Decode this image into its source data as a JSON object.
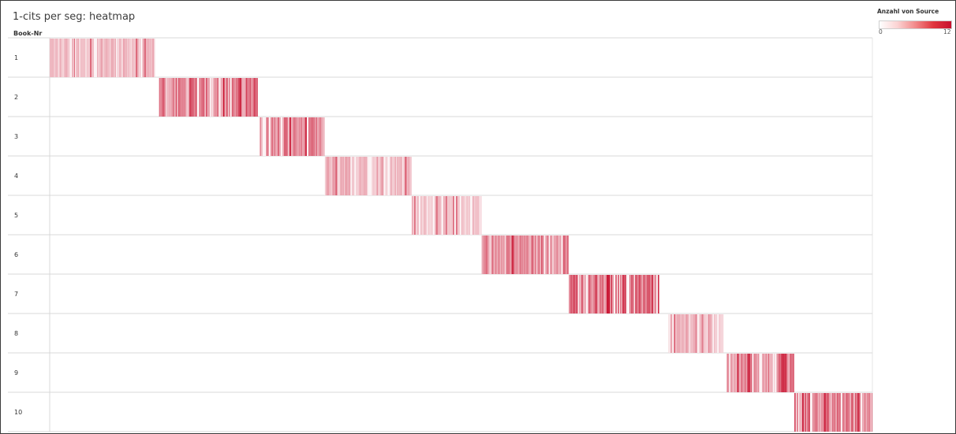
{
  "title": "1-cits per seg: heatmap",
  "row_header": "Book-Nr",
  "legend": {
    "title": "Anzahl von Source",
    "min_label": "0",
    "max_label": "12",
    "color_low": "#ffffff",
    "color_high": "#c8102e"
  },
  "chart_data": {
    "type": "heatmap",
    "title": "1-cits per seg: heatmap",
    "ylabel": "Book-Nr",
    "rows": [
      "1",
      "2",
      "3",
      "4",
      "5",
      "6",
      "7",
      "8",
      "9",
      "10"
    ],
    "value_range": [
      0,
      12
    ],
    "x_range": [
      0,
      1000
    ],
    "segments": [
      {
        "book": "1",
        "x_start": 0,
        "x_end": 128,
        "mean_intensity": 0.32
      },
      {
        "book": "2",
        "x_start": 133,
        "x_end": 253,
        "mean_intensity": 0.68
      },
      {
        "book": "3",
        "x_start": 255,
        "x_end": 334,
        "mean_intensity": 0.6
      },
      {
        "book": "4",
        "x_start": 334,
        "x_end": 440,
        "mean_intensity": 0.4
      },
      {
        "book": "5",
        "x_start": 440,
        "x_end": 525,
        "mean_intensity": 0.3
      },
      {
        "book": "6",
        "x_start": 525,
        "x_end": 631,
        "mean_intensity": 0.6
      },
      {
        "book": "7",
        "x_start": 631,
        "x_end": 741,
        "mean_intensity": 0.72
      },
      {
        "book": "8",
        "x_start": 752,
        "x_end": 819,
        "mean_intensity": 0.38
      },
      {
        "book": "9",
        "x_start": 823,
        "x_end": 905,
        "mean_intensity": 0.6
      },
      {
        "book": "10",
        "x_start": 905,
        "x_end": 1000,
        "mean_intensity": 0.62
      }
    ]
  }
}
